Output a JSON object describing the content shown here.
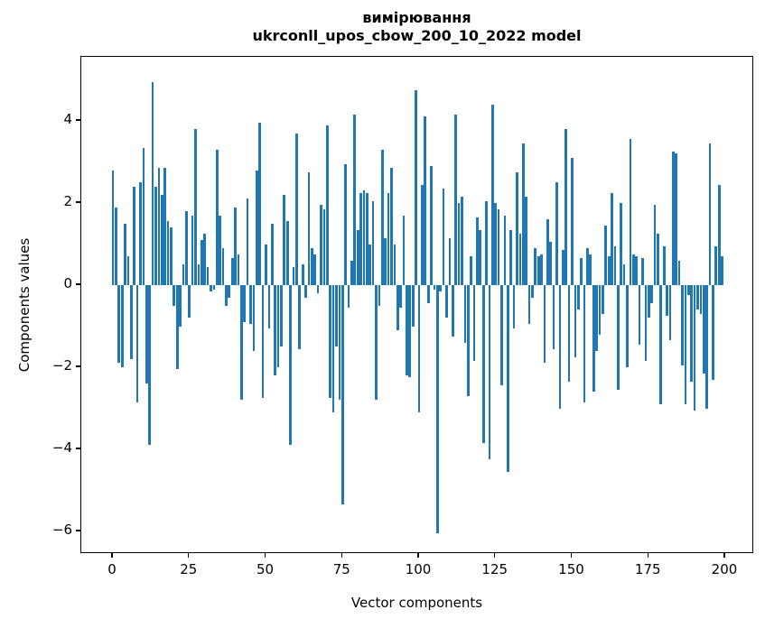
{
  "chart_data": {
    "type": "bar",
    "title": "вимірювання",
    "subtitle": "ukrconll_upos_cbow_200_10_2022 model",
    "xlabel": "Vector components",
    "ylabel": "Components values",
    "bar_color": "#1f77b4",
    "axis_color": "#000000",
    "background_color": "#ffffff",
    "grid": false,
    "legend": false,
    "n_components": 200,
    "xlim": [
      -10.3,
      209.5
    ],
    "ylim": [
      -6.55,
      5.56
    ],
    "x_ticks": [
      0,
      25,
      50,
      75,
      100,
      125,
      150,
      175,
      200
    ],
    "x_tick_labels": [
      "0",
      "25",
      "50",
      "75",
      "100",
      "125",
      "150",
      "175",
      "200"
    ],
    "y_ticks": [
      4,
      2,
      0,
      -2,
      -4,
      -6
    ],
    "y_tick_labels": [
      "4",
      "2",
      "0",
      "−2",
      "−4",
      "−6"
    ],
    "values": [
      2.8,
      1.9,
      -1.9,
      -2.0,
      1.5,
      0.7,
      -1.8,
      2.4,
      -2.85,
      2.5,
      3.35,
      -2.4,
      -3.9,
      4.95,
      2.4,
      2.85,
      2.2,
      2.85,
      1.55,
      1.4,
      -0.5,
      -2.05,
      -1.0,
      0.5,
      1.8,
      -0.8,
      1.7,
      3.8,
      0.5,
      1.1,
      1.25,
      0.45,
      -0.15,
      -0.1,
      3.3,
      1.7,
      0.9,
      -0.5,
      -0.3,
      0.65,
      1.9,
      0.75,
      -2.8,
      -0.9,
      2.1,
      -0.95,
      -1.6,
      2.8,
      3.95,
      -2.75,
      1.0,
      -1.05,
      1.5,
      -2.2,
      -2.0,
      -1.5,
      2.2,
      1.55,
      -3.9,
      0.45,
      3.7,
      -1.55,
      0.5,
      -0.3,
      2.75,
      0.9,
      0.75,
      -0.2,
      1.95,
      1.85,
      3.9,
      -2.75,
      -3.1,
      -1.5,
      -2.8,
      -5.35,
      2.95,
      -0.55,
      0.6,
      4.15,
      1.35,
      2.25,
      2.3,
      2.25,
      1.0,
      2.05,
      -2.8,
      -0.5,
      3.3,
      1.15,
      2.25,
      2.85,
      1.0,
      -1.1,
      -0.55,
      1.7,
      -2.2,
      -2.25,
      -1.0,
      4.75,
      -3.1,
      2.45,
      4.1,
      -0.45,
      2.9,
      -0.1,
      -6.05,
      -0.15,
      2.35,
      -0.8,
      1.15,
      -1.25,
      4.15,
      2.0,
      2.15,
      -1.4,
      -2.7,
      0.7,
      -1.85,
      1.65,
      1.35,
      -3.85,
      2.05,
      -4.25,
      4.4,
      2.0,
      1.85,
      -2.45,
      1.7,
      -4.55,
      1.35,
      -1.05,
      2.75,
      1.25,
      3.45,
      2.15,
      -0.95,
      -0.3,
      0.9,
      0.7,
      0.75,
      -1.9,
      1.6,
      1.05,
      -1.55,
      2.5,
      -3.0,
      0.85,
      3.8,
      -2.35,
      3.1,
      -1.75,
      -0.6,
      0.65,
      -2.85,
      0.9,
      0.75,
      -2.6,
      -1.6,
      -1.2,
      -0.7,
      1.45,
      0.7,
      2.25,
      0.95,
      -2.55,
      2.0,
      0.5,
      -2.0,
      3.55,
      0.75,
      0.7,
      -1.45,
      0.65,
      -1.85,
      -0.8,
      -0.45,
      1.95,
      1.25,
      -2.9,
      0.95,
      -0.75,
      -1.35,
      3.25,
      3.2,
      0.6,
      -1.95,
      -2.9,
      -0.25,
      -2.35,
      -3.05,
      -0.6,
      -0.7,
      -2.15,
      -3.0,
      3.45,
      -2.3,
      0.95,
      2.45,
      0.7
    ]
  }
}
